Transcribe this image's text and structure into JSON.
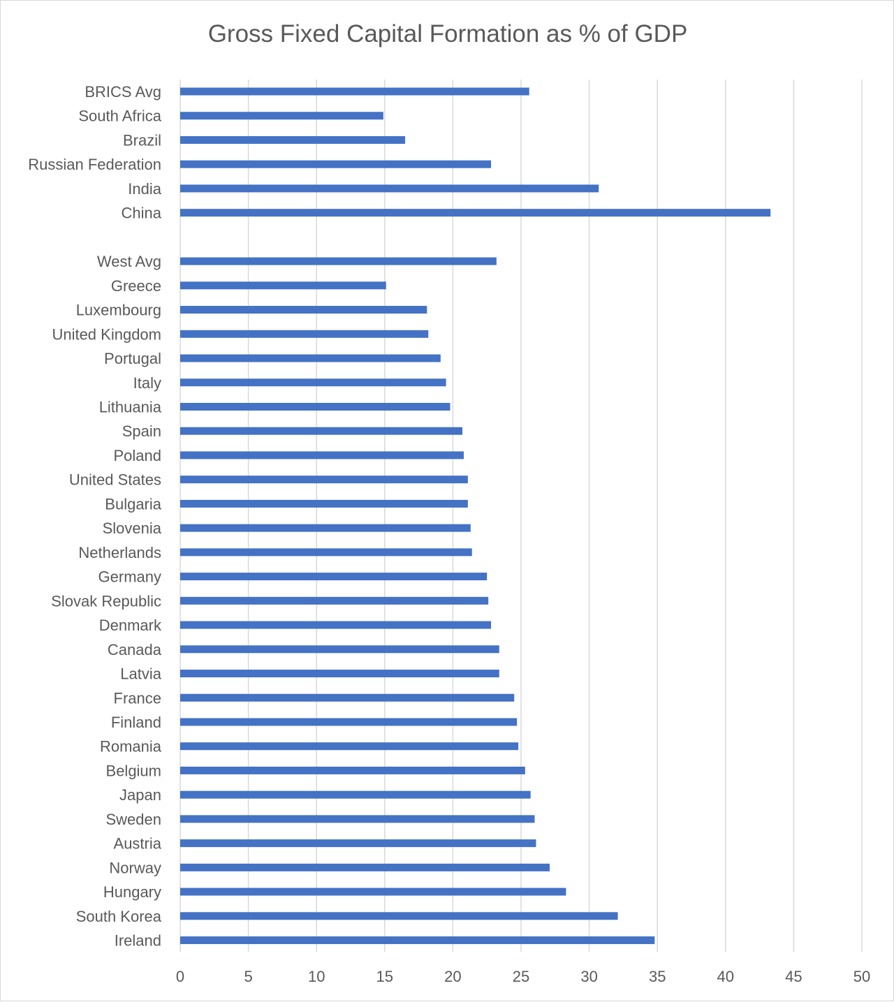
{
  "chart_data": {
    "type": "bar",
    "orientation": "horizontal",
    "title": "Gross Fixed Capital Formation as % of GDP",
    "xlabel": "",
    "ylabel": "",
    "xlim": [
      0,
      50
    ],
    "x_ticks": [
      "0",
      "5",
      "10",
      "15",
      "20",
      "25",
      "30",
      "35",
      "40",
      "45",
      "50"
    ],
    "grid": true,
    "legend": "none",
    "bar_color": "#4472c4",
    "categories": [
      "BRICS Avg",
      "South Africa",
      "Brazil",
      "Russian Federation",
      "India",
      "China",
      "",
      "West Avg",
      "Greece",
      "Luxembourg",
      "United Kingdom",
      "Portugal",
      "Italy",
      "Lithuania",
      "Spain",
      "Poland",
      "United States",
      "Bulgaria",
      "Slovenia",
      "Netherlands",
      "Germany",
      "Slovak Republic",
      "Denmark",
      "Canada",
      "Latvia",
      "France",
      "Finland",
      "Romania",
      "Belgium",
      "Japan",
      "Sweden",
      "Austria",
      "Norway",
      "Hungary",
      "South Korea",
      "Ireland"
    ],
    "values": [
      25.6,
      14.9,
      16.5,
      22.8,
      30.7,
      43.3,
      null,
      23.2,
      15.1,
      18.1,
      18.2,
      19.1,
      19.5,
      19.8,
      20.7,
      20.8,
      21.1,
      21.1,
      21.3,
      21.4,
      22.5,
      22.6,
      22.8,
      23.4,
      23.4,
      24.5,
      24.7,
      24.8,
      25.3,
      25.7,
      26.0,
      26.1,
      27.1,
      28.3,
      32.1,
      34.8
    ]
  }
}
